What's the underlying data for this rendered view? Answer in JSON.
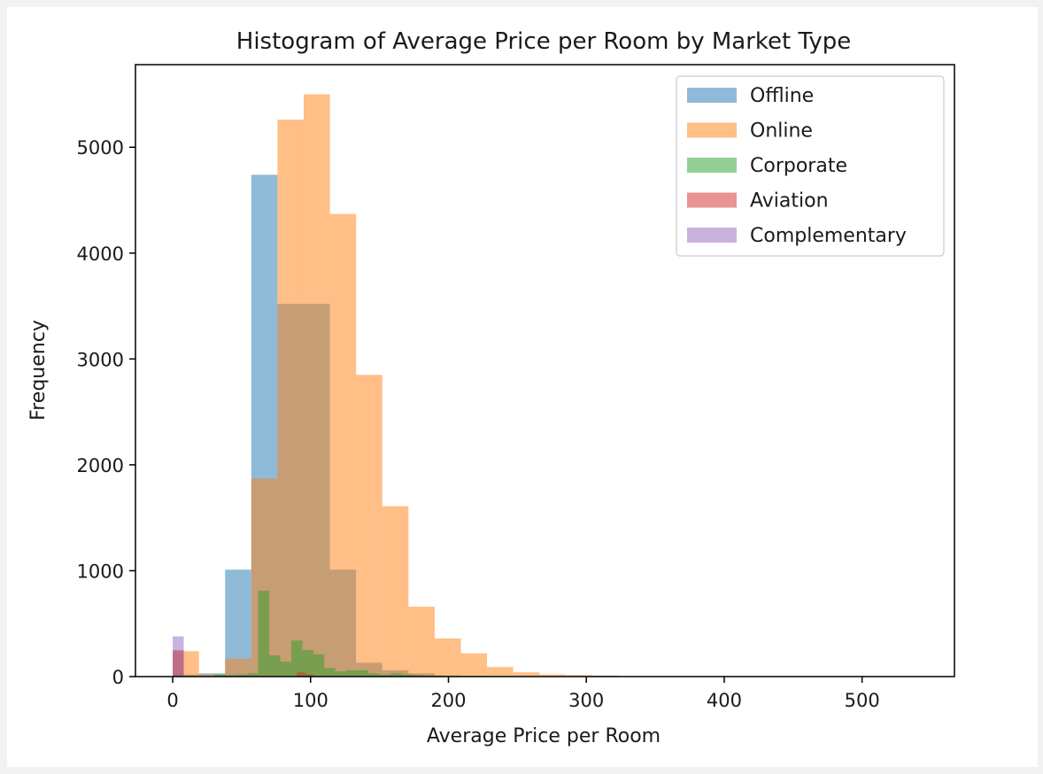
{
  "chart_data": {
    "type": "histogram",
    "title": "Histogram of Average Price per Room by Market Type",
    "xlabel": "Average Price per Room",
    "ylabel": "Frequency",
    "xlim": [
      -27,
      567
    ],
    "ylim": [
      0,
      5780
    ],
    "xticks": [
      0,
      100,
      200,
      300,
      400,
      500
    ],
    "yticks": [
      0,
      1000,
      2000,
      3000,
      4000,
      5000
    ],
    "legend_position": "top-right",
    "alpha": 0.5,
    "series": [
      {
        "name": "Offline",
        "color": "#1f77b4",
        "bins": [
          {
            "x0": 0,
            "x1": 19,
            "count": 20
          },
          {
            "x0": 19,
            "x1": 38,
            "count": 30
          },
          {
            "x0": 38,
            "x1": 57,
            "count": 1010
          },
          {
            "x0": 57,
            "x1": 76,
            "count": 4740
          },
          {
            "x0": 76,
            "x1": 95,
            "count": 3520
          },
          {
            "x0": 95,
            "x1": 114,
            "count": 3520
          },
          {
            "x0": 114,
            "x1": 133,
            "count": 1010
          },
          {
            "x0": 133,
            "x1": 152,
            "count": 130
          },
          {
            "x0": 152,
            "x1": 171,
            "count": 60
          },
          {
            "x0": 171,
            "x1": 190,
            "count": 30
          },
          {
            "x0": 190,
            "x1": 209,
            "count": 10
          },
          {
            "x0": 209,
            "x1": 228,
            "count": 5
          },
          {
            "x0": 228,
            "x1": 247,
            "count": 3
          },
          {
            "x0": 247,
            "x1": 266,
            "count": 2
          },
          {
            "x0": 266,
            "x1": 285,
            "count": 1
          },
          {
            "x0": 285,
            "x1": 304,
            "count": 1
          }
        ]
      },
      {
        "name": "Online",
        "color": "#ff7f0e",
        "bins": [
          {
            "x0": 0,
            "x1": 19,
            "count": 240
          },
          {
            "x0": 19,
            "x1": 38,
            "count": 20
          },
          {
            "x0": 38,
            "x1": 57,
            "count": 170
          },
          {
            "x0": 57,
            "x1": 76,
            "count": 1870
          },
          {
            "x0": 76,
            "x1": 95,
            "count": 5260
          },
          {
            "x0": 95,
            "x1": 114,
            "count": 5500
          },
          {
            "x0": 114,
            "x1": 133,
            "count": 4370
          },
          {
            "x0": 133,
            "x1": 152,
            "count": 2850
          },
          {
            "x0": 152,
            "x1": 171,
            "count": 1610
          },
          {
            "x0": 171,
            "x1": 190,
            "count": 660
          },
          {
            "x0": 190,
            "x1": 209,
            "count": 360
          },
          {
            "x0": 209,
            "x1": 228,
            "count": 220
          },
          {
            "x0": 228,
            "x1": 247,
            "count": 90
          },
          {
            "x0": 247,
            "x1": 266,
            "count": 40
          },
          {
            "x0": 266,
            "x1": 285,
            "count": 20
          },
          {
            "x0": 285,
            "x1": 304,
            "count": 15
          },
          {
            "x0": 304,
            "x1": 323,
            "count": 10
          }
        ]
      },
      {
        "name": "Corporate",
        "color": "#2ca02c",
        "bins": [
          {
            "x0": 30,
            "x1": 38,
            "count": 20
          },
          {
            "x0": 38,
            "x1": 46,
            "count": 15
          },
          {
            "x0": 46,
            "x1": 54,
            "count": 20
          },
          {
            "x0": 54,
            "x1": 62,
            "count": 30
          },
          {
            "x0": 62,
            "x1": 70,
            "count": 810
          },
          {
            "x0": 70,
            "x1": 78,
            "count": 200
          },
          {
            "x0": 78,
            "x1": 86,
            "count": 140
          },
          {
            "x0": 86,
            "x1": 94,
            "count": 340
          },
          {
            "x0": 94,
            "x1": 102,
            "count": 250
          },
          {
            "x0": 102,
            "x1": 110,
            "count": 210
          },
          {
            "x0": 110,
            "x1": 118,
            "count": 80
          },
          {
            "x0": 118,
            "x1": 126,
            "count": 50
          },
          {
            "x0": 126,
            "x1": 134,
            "count": 60
          },
          {
            "x0": 134,
            "x1": 142,
            "count": 60
          },
          {
            "x0": 142,
            "x1": 150,
            "count": 30
          },
          {
            "x0": 150,
            "x1": 158,
            "count": 20
          },
          {
            "x0": 158,
            "x1": 166,
            "count": 30
          },
          {
            "x0": 166,
            "x1": 174,
            "count": 20
          },
          {
            "x0": 174,
            "x1": 182,
            "count": 15
          },
          {
            "x0": 182,
            "x1": 190,
            "count": 10
          },
          {
            "x0": 190,
            "x1": 198,
            "count": 10
          }
        ]
      },
      {
        "name": "Aviation",
        "color": "#d62728",
        "bins": [
          {
            "x0": 0,
            "x1": 8,
            "count": 250
          },
          {
            "x0": 90,
            "x1": 96,
            "count": 40
          },
          {
            "x0": 96,
            "x1": 102,
            "count": 20
          }
        ]
      },
      {
        "name": "Complementary",
        "color": "#9467bd",
        "bins": [
          {
            "x0": 0,
            "x1": 8,
            "count": 380
          }
        ]
      }
    ]
  }
}
